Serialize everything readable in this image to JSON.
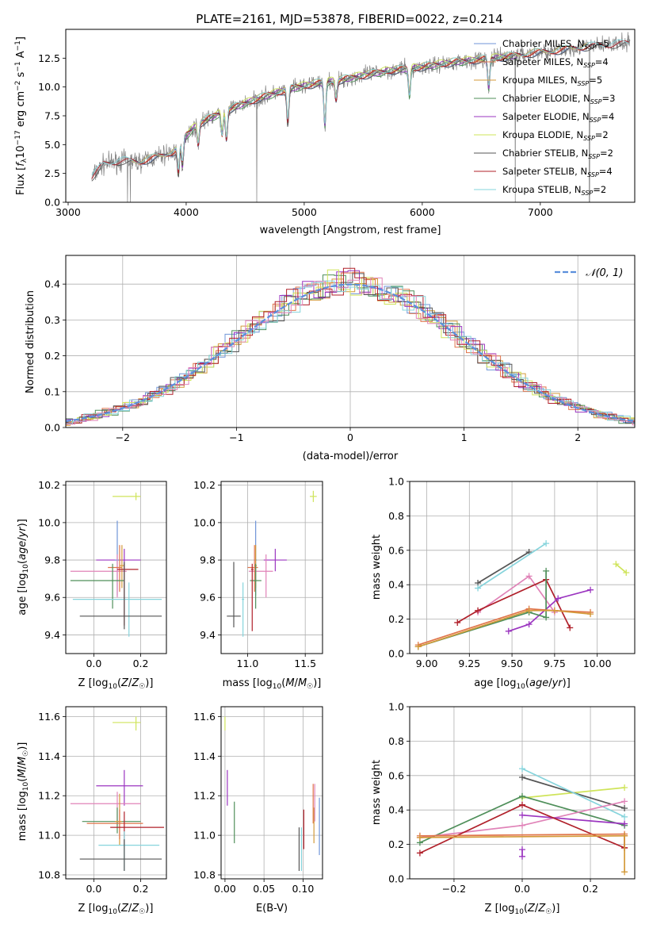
{
  "figure": {
    "title": "PLATE=2161, MJD=53878, FIBERID=0022, z=0.214"
  },
  "palette": {
    "Chabrier MILES": "#6f95d8",
    "Salpeter MILES": "#e0744a",
    "Kroupa MILES": "#d49a3a",
    "Chabrier ELODIE": "#4f8f5a",
    "Salpeter ELODIE": "#9b35c0",
    "Kroupa ELODIE": "#cfe45a",
    "Chabrier STELIB": "#555555",
    "Salpeter STELIB": "#b0202a",
    "Kroupa STELIB": "#86d4dc",
    "extra": "#e083b8",
    "data": "#808080",
    "normal": "#5b8fdc"
  },
  "chart_data": [
    {
      "id": "spectrum",
      "type": "line",
      "xlabel": "wavelength [Angstrom, rest frame]",
      "ylabel": "Flux [f_λ 10^-17 erg cm^-2 s^-1 A^-1]",
      "xlim": [
        2980,
        7800
      ],
      "ylim": [
        0,
        15
      ],
      "xticks": [
        3000,
        4000,
        5000,
        6000,
        7000
      ],
      "yticks": [
        0.0,
        2.5,
        5.0,
        7.5,
        10.0,
        12.5
      ],
      "legend_position": "upper-right",
      "grid": false,
      "anchors": {
        "wavelength": [
          3200,
          3300,
          3450,
          3600,
          3750,
          3900,
          4000,
          4100,
          4200,
          4300,
          4500,
          4700,
          4900,
          5100,
          5300,
          5500,
          5700,
          5900,
          6100,
          6300,
          6500,
          6700,
          6900,
          7100,
          7300,
          7500,
          7750
        ],
        "flux": [
          2.2,
          3.3,
          3.6,
          3.5,
          3.9,
          4.4,
          5.8,
          6.8,
          7.3,
          7.8,
          8.6,
          9.3,
          9.9,
          10.3,
          10.6,
          11.0,
          11.4,
          11.6,
          11.9,
          12.2,
          12.4,
          12.6,
          12.9,
          13.1,
          13.4,
          13.6,
          13.8
        ]
      },
      "legend": [
        "Chabrier MILES, N_SSP=5",
        "Salpeter MILES, N_SSP=4",
        "Kroupa MILES, N_SSP=5",
        "Chabrier ELODIE, N_SSP=3",
        "Salpeter ELODIE, N_SSP=4",
        "Kroupa ELODIE, N_SSP=2",
        "Chabrier STELIB, N_SSP=2",
        "Salpeter STELIB, N_SSP=4",
        "Kroupa STELIB, N_SSP=2"
      ]
    },
    {
      "id": "residuals",
      "type": "histogram",
      "xlabel": "(data-model)/error",
      "ylabel": "Normed distribution",
      "xlim": [
        -2.5,
        2.5
      ],
      "ylim": [
        0,
        0.48
      ],
      "xticks": [
        -2,
        -1,
        0,
        1,
        2
      ],
      "yticks": [
        0.0,
        0.1,
        0.2,
        0.3,
        0.4
      ],
      "grid": true,
      "legend": [
        "𝒩(0, 1)"
      ],
      "bin_width": 0.1
    },
    {
      "id": "age_vs_Z",
      "type": "errorbar",
      "xlabel": "Z [log10(Z/Z_sun)]",
      "ylabel": "age [log10(age/yr)]",
      "xlim": [
        -0.12,
        0.31
      ],
      "ylim": [
        9.3,
        10.22
      ],
      "xticks": [
        0.0,
        0.2
      ],
      "yticks": [
        9.4,
        9.6,
        9.8,
        10.0,
        10.2
      ],
      "grid": true,
      "points": [
        {
          "model": "Kroupa ELODIE",
          "x": 0.18,
          "xerr": [
            0.1,
            0.02
          ],
          "y": 10.14,
          "yerr": [
            0.02,
            0.02
          ]
        },
        {
          "model": "Salpeter ELODIE",
          "x": 0.13,
          "xerr": [
            0.12,
            0.07
          ],
          "y": 9.8,
          "yerr": [
            0.06,
            0.06
          ]
        },
        {
          "model": "Chabrier MILES",
          "x": 0.1,
          "xerr": [
            0.01,
            0.01
          ],
          "y": 9.8,
          "yerr": [
            0.19,
            0.21
          ]
        },
        {
          "model": "extra",
          "x": 0.1,
          "xerr": [
            0.2,
            0.04
          ],
          "y": 9.74,
          "yerr": [
            0.14,
            0.09
          ]
        },
        {
          "model": "Salpeter MILES",
          "x": 0.11,
          "xerr": [
            0.05,
            0.01
          ],
          "y": 9.76,
          "yerr": [
            0.13,
            0.12
          ]
        },
        {
          "model": "Kroupa MILES",
          "x": 0.12,
          "xerr": [
            0.01,
            0.01
          ],
          "y": 9.77,
          "yerr": [
            0.12,
            0.11
          ]
        },
        {
          "model": "Chabrier ELODIE",
          "x": 0.08,
          "xerr": [
            0.18,
            0.05
          ],
          "y": 9.69,
          "yerr": [
            0.15,
            0.09
          ]
        },
        {
          "model": "Salpeter STELIB",
          "x": 0.13,
          "xerr": [
            0.03,
            0.06
          ],
          "y": 9.75,
          "yerr": [
            0.3,
            0.03
          ]
        },
        {
          "model": "Kroupa STELIB",
          "x": 0.15,
          "xerr": [
            0.24,
            0.14
          ],
          "y": 9.59,
          "yerr": [
            0.2,
            0.09
          ]
        },
        {
          "model": "Chabrier STELIB",
          "x": 0.13,
          "xerr": [
            0.19,
            0.16
          ],
          "y": 9.5,
          "yerr": [
            0.07,
            0.29
          ]
        }
      ]
    },
    {
      "id": "age_vs_mass",
      "type": "errorbar",
      "xlabel": "mass [log10(M/M_sun)]",
      "xlim": [
        10.77,
        11.65
      ],
      "ylim": [
        9.3,
        10.22
      ],
      "xticks": [
        11.0,
        11.5
      ],
      "yticks": [
        9.4,
        9.6,
        9.8,
        10.0,
        10.2
      ],
      "grid": true,
      "points": [
        {
          "model": "Kroupa ELODIE",
          "x": 11.57,
          "xerr": [
            0.03,
            0.03
          ],
          "y": 10.14,
          "yerr": [
            0.03,
            0.03
          ]
        },
        {
          "model": "Salpeter ELODIE",
          "x": 11.24,
          "xerr": [
            0.1,
            0.1
          ],
          "y": 9.8,
          "yerr": [
            0.06,
            0.06
          ]
        },
        {
          "model": "Chabrier MILES",
          "x": 11.07,
          "xerr": [
            0.01,
            0.01
          ],
          "y": 9.8,
          "yerr": [
            0.19,
            0.21
          ]
        },
        {
          "model": "extra",
          "x": 11.16,
          "xerr": [
            0.15,
            0.06
          ],
          "y": 9.74,
          "yerr": [
            0.14,
            0.09
          ]
        },
        {
          "model": "Salpeter MILES",
          "x": 11.06,
          "xerr": [
            0.06,
            0.03
          ],
          "y": 9.76,
          "yerr": [
            0.13,
            0.12
          ]
        },
        {
          "model": "Kroupa MILES",
          "x": 11.07,
          "xerr": [
            0.01,
            0.01
          ],
          "y": 9.77,
          "yerr": [
            0.12,
            0.11
          ]
        },
        {
          "model": "Chabrier ELODIE",
          "x": 11.07,
          "xerr": [
            0.05,
            0.05
          ],
          "y": 9.69,
          "yerr": [
            0.15,
            0.09
          ]
        },
        {
          "model": "Salpeter STELIB",
          "x": 11.04,
          "xerr": [
            0.01,
            0.01
          ],
          "y": 9.75,
          "yerr": [
            0.33,
            0.03
          ]
        },
        {
          "model": "Kroupa STELIB",
          "x": 10.96,
          "xerr": [
            0.01,
            0.01
          ],
          "y": 9.59,
          "yerr": [
            0.2,
            0.09
          ]
        },
        {
          "model": "Chabrier STELIB",
          "x": 10.88,
          "xerr": [
            0.06,
            0.06
          ],
          "y": 9.5,
          "yerr": [
            0.06,
            0.29
          ]
        }
      ]
    },
    {
      "id": "weight_vs_age",
      "type": "line",
      "xlabel": "age [log10(age/yr)]",
      "ylabel": "mass weight",
      "xlim": [
        8.9,
        10.22
      ],
      "ylim": [
        0,
        1
      ],
      "xticks": [
        9.0,
        9.25,
        9.5,
        9.75,
        10.0
      ],
      "yticks": [
        0.0,
        0.2,
        0.4,
        0.6,
        0.8,
        1.0
      ],
      "grid": true,
      "series": [
        {
          "model": "Chabrier STELIB",
          "x": [
            9.3,
            9.6
          ],
          "y": [
            0.41,
            0.59
          ]
        },
        {
          "model": "Kroupa STELIB",
          "x": [
            9.3,
            9.7
          ],
          "y": [
            0.38,
            0.64
          ]
        },
        {
          "model": "extra",
          "x": [
            9.3,
            9.6,
            9.75
          ],
          "y": [
            0.24,
            0.45,
            0.24
          ]
        },
        {
          "model": "Salpeter STELIB",
          "x": [
            9.18,
            9.3,
            9.7,
            9.84
          ],
          "y": [
            0.18,
            0.25,
            0.43,
            0.15
          ]
        },
        {
          "model": "Salpeter ELODIE",
          "x": [
            9.48,
            9.6,
            9.77,
            9.96
          ],
          "y": [
            0.13,
            0.17,
            0.32,
            0.37
          ]
        },
        {
          "model": "Chabrier ELODIE",
          "x": [
            8.95,
            9.6,
            9.7,
            9.7
          ],
          "y": [
            0.04,
            0.24,
            0.21,
            0.48
          ]
        },
        {
          "model": "Salpeter MILES",
          "x": [
            8.95,
            9.6,
            9.75,
            9.96
          ],
          "y": [
            0.05,
            0.26,
            0.25,
            0.24
          ]
        },
        {
          "model": "Kroupa MILES",
          "x": [
            8.95,
            9.6,
            9.75,
            9.96
          ],
          "y": [
            0.04,
            0.25,
            0.25,
            0.23
          ]
        },
        {
          "model": "Kroupa ELODIE",
          "x": [
            10.11,
            10.17
          ],
          "y": [
            0.52,
            0.47
          ]
        }
      ]
    },
    {
      "id": "mass_vs_Z",
      "type": "errorbar",
      "xlabel": "Z [log10(Z/Z_sun)]",
      "ylabel": "mass [log10(M/M_sun)]",
      "xlim": [
        -0.12,
        0.31
      ],
      "ylim": [
        10.78,
        11.65
      ],
      "xticks": [
        0.0,
        0.2
      ],
      "yticks": [
        10.8,
        11.0,
        11.2,
        11.4,
        11.6
      ],
      "grid": true,
      "points": [
        {
          "model": "Kroupa ELODIE",
          "x": 0.18,
          "xerr": [
            0.1,
            0.02
          ],
          "y": 11.57,
          "yerr": [
            0.04,
            0.03
          ]
        },
        {
          "model": "Salpeter ELODIE",
          "x": 0.13,
          "xerr": [
            0.12,
            0.08
          ],
          "y": 11.25,
          "yerr": [
            0.1,
            0.08
          ]
        },
        {
          "model": "extra",
          "x": 0.1,
          "xerr": [
            0.2,
            0.1
          ],
          "y": 11.16,
          "yerr": [
            0.11,
            0.06
          ]
        },
        {
          "model": "Chabrier ELODIE",
          "x": 0.1,
          "xerr": [
            0.15,
            0.1
          ],
          "y": 11.07,
          "yerr": [
            0.06,
            0.07
          ]
        },
        {
          "model": "Kroupa MILES",
          "x": 0.11,
          "xerr": [
            0.02,
            0.01
          ],
          "y": 11.07,
          "yerr": [
            0.12,
            0.14
          ]
        },
        {
          "model": "Salpeter MILES",
          "x": 0.11,
          "xerr": [
            0.14,
            0.1
          ],
          "y": 11.06,
          "yerr": [
            0.08,
            0.07
          ]
        },
        {
          "model": "Salpeter STELIB",
          "x": 0.13,
          "xerr": [
            0.06,
            0.17
          ],
          "y": 11.04,
          "yerr": [
            0.09,
            0.08
          ]
        },
        {
          "model": "Kroupa STELIB",
          "x": 0.13,
          "xerr": [
            0.11,
            0.15
          ],
          "y": 10.95,
          "yerr": [
            0.13,
            0.07
          ]
        },
        {
          "model": "Chabrier STELIB",
          "x": 0.13,
          "xerr": [
            0.19,
            0.16
          ],
          "y": 10.88,
          "yerr": [
            0.06,
            0.1
          ]
        }
      ]
    },
    {
      "id": "mass_vs_ebv",
      "type": "errorbar",
      "xlabel": "E(B-V)",
      "xlim": [
        -0.005,
        0.125
      ],
      "ylim": [
        10.78,
        11.65
      ],
      "xticks": [
        0.0,
        0.05,
        0.1
      ],
      "yticks": [
        10.8,
        11.0,
        11.2,
        11.4,
        11.6
      ],
      "grid": true,
      "points": [
        {
          "model": "Kroupa ELODIE",
          "x": 0.0,
          "xerr": [
            0.0,
            0.0
          ],
          "y": 11.57,
          "yerr": [
            0.04,
            0.03
          ]
        },
        {
          "model": "Salpeter ELODIE",
          "x": 0.003,
          "xerr": [
            0.0,
            0.0
          ],
          "y": 11.25,
          "yerr": [
            0.1,
            0.08
          ]
        },
        {
          "model": "Chabrier ELODIE",
          "x": 0.012,
          "xerr": [
            0.0,
            0.0
          ],
          "y": 11.07,
          "yerr": [
            0.11,
            0.1
          ]
        },
        {
          "model": "Chabrier STELIB",
          "x": 0.095,
          "xerr": [
            0.0,
            0.0
          ],
          "y": 10.92,
          "yerr": [
            0.1,
            0.12
          ]
        },
        {
          "model": "Kroupa STELIB",
          "x": 0.098,
          "xerr": [
            0.0,
            0.0
          ],
          "y": 10.92,
          "yerr": [
            0.1,
            0.12
          ]
        },
        {
          "model": "Salpeter STELIB",
          "x": 0.101,
          "xerr": [
            0.0,
            0.0
          ],
          "y": 11.04,
          "yerr": [
            0.11,
            0.09
          ]
        },
        {
          "model": "Salpeter MILES",
          "x": 0.113,
          "xerr": [
            0.0,
            0.0
          ],
          "y": 11.15,
          "yerr": [
            0.09,
            0.11
          ]
        },
        {
          "model": "Kroupa MILES",
          "x": 0.114,
          "xerr": [
            0.0,
            0.0
          ],
          "y": 11.05,
          "yerr": [
            0.09,
            0.09
          ]
        },
        {
          "model": "extra",
          "x": 0.115,
          "xerr": [
            0.0,
            0.0
          ],
          "y": 11.16,
          "yerr": [
            0.09,
            0.1
          ]
        },
        {
          "model": "Chabrier MILES",
          "x": 0.121,
          "xerr": [
            0.0,
            0.0
          ],
          "y": 11.05,
          "yerr": [
            0.15,
            0.14
          ]
        }
      ]
    },
    {
      "id": "weight_vs_Z",
      "type": "line",
      "xlabel": "Z [log10(Z/Z_sun)]",
      "ylabel": "mass weight",
      "xlim": [
        -0.33,
        0.33
      ],
      "ylim": [
        0,
        1
      ],
      "xticks": [
        -0.2,
        0.0,
        0.2
      ],
      "yticks": [
        0.0,
        0.2,
        0.4,
        0.6,
        0.8,
        1.0
      ],
      "grid": true,
      "series": [
        {
          "model": "Kroupa ELODIE",
          "x": [
            0.0,
            0.3
          ],
          "y": [
            0.47,
            0.53
          ]
        },
        {
          "model": "Chabrier STELIB",
          "x": [
            0.0,
            0.3
          ],
          "y": [
            0.59,
            0.41
          ]
        },
        {
          "model": "Kroupa STELIB",
          "x": [
            0.0,
            0.3
          ],
          "y": [
            0.64,
            0.36
          ]
        },
        {
          "model": "Chabrier ELODIE",
          "x": [
            -0.3,
            0.0,
            0.3
          ],
          "y": [
            0.21,
            0.48,
            0.31
          ]
        },
        {
          "model": "extra",
          "x": [
            -0.3,
            0.0,
            0.3
          ],
          "y": [
            0.24,
            0.31,
            0.45
          ]
        },
        {
          "model": "Salpeter ELODIE",
          "x": [
            0.0,
            0.3
          ],
          "y": [
            0.37,
            0.32
          ]
        },
        {
          "model": "Salpeter ELODIE",
          "x": [
            0.0,
            0.0
          ],
          "y": [
            0.13,
            0.17
          ]
        },
        {
          "model": "Salpeter STELIB",
          "x": [
            -0.3,
            0.0,
            0.3
          ],
          "y": [
            0.15,
            0.43,
            0.18
          ]
        },
        {
          "model": "Salpeter STELIB",
          "x": [
            0.3,
            0.3
          ],
          "y": [
            0.25,
            0.18
          ]
        },
        {
          "model": "Salpeter MILES",
          "x": [
            -0.3,
            0.3
          ],
          "y": [
            0.25,
            0.26
          ]
        },
        {
          "model": "Kroupa MILES",
          "x": [
            -0.3,
            0.3
          ],
          "y": [
            0.24,
            0.25
          ]
        },
        {
          "model": "Kroupa MILES",
          "x": [
            0.3,
            0.3
          ],
          "y": [
            0.25,
            0.04
          ]
        }
      ]
    }
  ]
}
